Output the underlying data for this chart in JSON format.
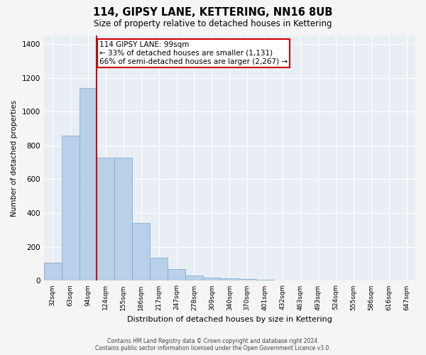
{
  "title": "114, GIPSY LANE, KETTERING, NN16 8UB",
  "subtitle": "Size of property relative to detached houses in Kettering",
  "xlabel": "Distribution of detached houses by size in Kettering",
  "ylabel": "Number of detached properties",
  "bin_labels": [
    "32sqm",
    "63sqm",
    "94sqm",
    "124sqm",
    "155sqm",
    "186sqm",
    "217sqm",
    "247sqm",
    "278sqm",
    "309sqm",
    "340sqm",
    "370sqm",
    "401sqm",
    "432sqm",
    "463sqm",
    "493sqm",
    "524sqm",
    "555sqm",
    "586sqm",
    "616sqm",
    "647sqm"
  ],
  "bar_values": [
    105,
    860,
    1140,
    730,
    730,
    340,
    135,
    70,
    30,
    20,
    15,
    10,
    5,
    0,
    0,
    0,
    0,
    0,
    0,
    0,
    0
  ],
  "bar_color": "#b8d0e8",
  "bar_edge_color": "#7aaac8",
  "property_line_color": "#cc0000",
  "annotation_box_facecolor": "#ffffff",
  "annotation_box_edgecolor": "#cc0000",
  "annotation_line1": "114 GIPSY LANE: 99sqm",
  "annotation_line2": "← 33% of detached houses are smaller (1,131)",
  "annotation_line3": "66% of semi-detached houses are larger (2,267) →",
  "axes_facecolor": "#e8eef4",
  "fig_facecolor": "#f5f5f5",
  "grid_color": "#ffffff",
  "ylim": [
    0,
    1450
  ],
  "yticks": [
    0,
    200,
    400,
    600,
    800,
    1000,
    1200,
    1400
  ],
  "property_bin_index": 2,
  "footer_line1": "Contains HM Land Registry data © Crown copyright and database right 2024.",
  "footer_line2": "Contains public sector information licensed under the Open Government Licence v3.0."
}
